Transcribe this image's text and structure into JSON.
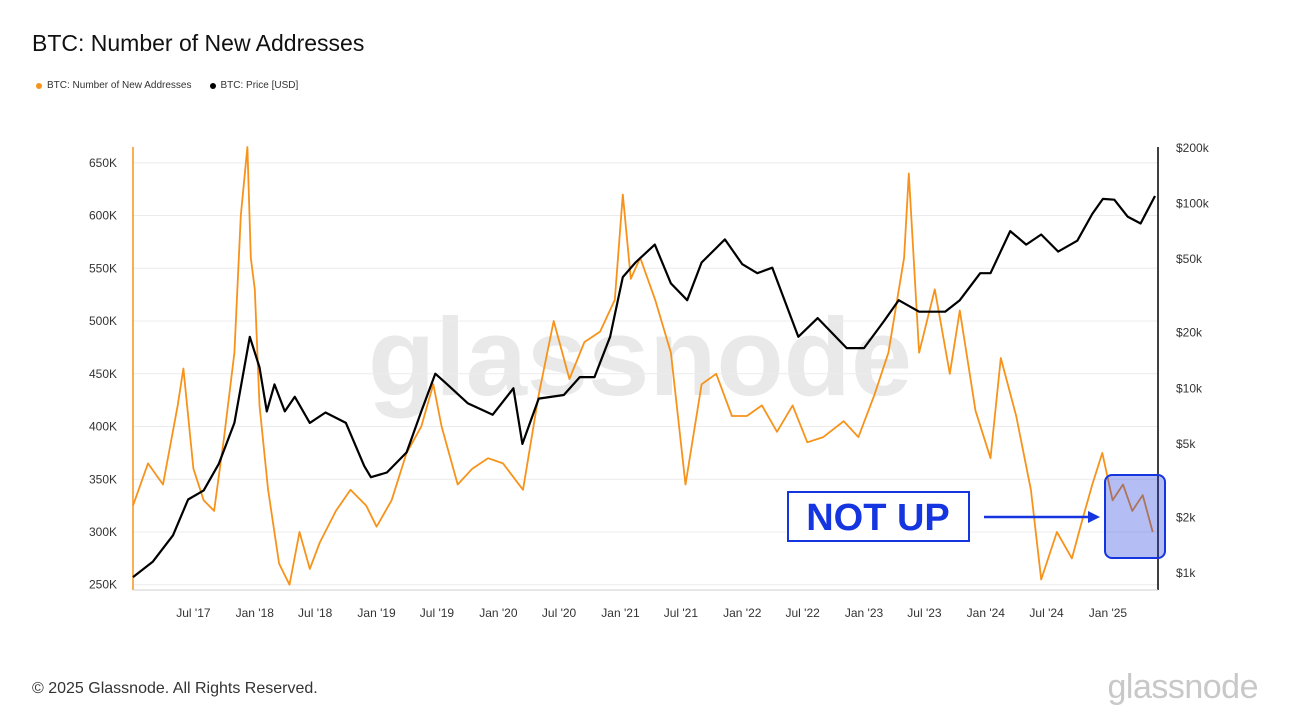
{
  "title": "BTC: Number of New Addresses",
  "legend": [
    {
      "label": "BTC: Number of New Addresses",
      "color": "#f7931a"
    },
    {
      "label": "BTC: Price [USD]",
      "color": "#000000"
    }
  ],
  "copyright": "© 2025 Glassnode. All Rights Reserved.",
  "brand": "glassnode",
  "watermark": "glassnode",
  "annotation": {
    "label": "NOT UP",
    "color": "#1535e0"
  },
  "chart_data": {
    "type": "line",
    "x_ticks": [
      "Jul '17",
      "Jan '18",
      "Jul '18",
      "Jan '19",
      "Jul '19",
      "Jan '20",
      "Jul '20",
      "Jan '21",
      "Jul '21",
      "Jan '22",
      "Jul '22",
      "Jan '23",
      "Jul '23",
      "Jan '24",
      "Jul '24",
      "Jan '25"
    ],
    "y_left_ticks": [
      250000,
      300000,
      350000,
      400000,
      450000,
      500000,
      550000,
      600000,
      650000
    ],
    "y_left_labels": [
      "250K",
      "300K",
      "350K",
      "400K",
      "450K",
      "500K",
      "550K",
      "600K",
      "650K"
    ],
    "y_left_range": [
      245000,
      665000
    ],
    "y_right_ticks": [
      1000,
      2000,
      5000,
      10000,
      20000,
      50000,
      100000,
      200000
    ],
    "y_right_labels": [
      "$1k",
      "$2k",
      "$5k",
      "$10k",
      "$20k",
      "$50k",
      "$100k",
      "$200k"
    ],
    "y_right_scale": "log",
    "x_range": [
      "2017-01-01",
      "2025-05-31"
    ],
    "series": [
      {
        "name": "BTC: Number of New Addresses",
        "axis": "left",
        "color": "#f7931a",
        "x": [
          "2017-01-01",
          "2017-02-15",
          "2017-04-01",
          "2017-05-15",
          "2017-06-01",
          "2017-07-01",
          "2017-08-01",
          "2017-09-01",
          "2017-10-01",
          "2017-11-01",
          "2017-11-20",
          "2017-12-10",
          "2017-12-20",
          "2018-01-01",
          "2018-01-15",
          "2018-02-10",
          "2018-03-15",
          "2018-04-15",
          "2018-05-15",
          "2018-06-15",
          "2018-07-15",
          "2018-09-01",
          "2018-10-15",
          "2018-12-01",
          "2019-01-01",
          "2019-02-15",
          "2019-04-01",
          "2019-05-15",
          "2019-06-20",
          "2019-07-15",
          "2019-09-01",
          "2019-10-15",
          "2019-12-01",
          "2020-01-15",
          "2020-03-15",
          "2020-05-01",
          "2020-06-15",
          "2020-08-01",
          "2020-09-15",
          "2020-11-01",
          "2020-12-15",
          "2021-01-08",
          "2021-02-01",
          "2021-03-01",
          "2021-04-15",
          "2021-06-01",
          "2021-07-15",
          "2021-09-01",
          "2021-10-15",
          "2021-12-01",
          "2022-01-15",
          "2022-03-01",
          "2022-04-15",
          "2022-06-01",
          "2022-07-15",
          "2022-09-01",
          "2022-11-01",
          "2022-12-15",
          "2023-02-01",
          "2023-03-15",
          "2023-05-01",
          "2023-05-15",
          "2023-06-15",
          "2023-08-01",
          "2023-09-15",
          "2023-10-15",
          "2023-12-01",
          "2024-01-15",
          "2024-02-15",
          "2024-04-01",
          "2024-05-15",
          "2024-06-15",
          "2024-08-01",
          "2024-09-15",
          "2024-10-15",
          "2024-11-15",
          "2024-12-15",
          "2025-01-15",
          "2025-02-15",
          "2025-03-15",
          "2025-04-15",
          "2025-05-15"
        ],
        "values": [
          325000,
          365000,
          345000,
          420000,
          455000,
          360000,
          330000,
          320000,
          390000,
          470000,
          600000,
          665000,
          560000,
          530000,
          420000,
          340000,
          270000,
          250000,
          300000,
          265000,
          290000,
          320000,
          340000,
          325000,
          305000,
          330000,
          375000,
          400000,
          440000,
          400000,
          345000,
          360000,
          370000,
          365000,
          340000,
          430000,
          500000,
          445000,
          480000,
          490000,
          520000,
          620000,
          540000,
          560000,
          520000,
          470000,
          345000,
          440000,
          450000,
          410000,
          410000,
          420000,
          395000,
          420000,
          385000,
          390000,
          405000,
          390000,
          430000,
          470000,
          560000,
          640000,
          470000,
          530000,
          450000,
          510000,
          415000,
          370000,
          465000,
          410000,
          340000,
          255000,
          300000,
          275000,
          310000,
          345000,
          375000,
          330000,
          345000,
          320000,
          335000,
          300000
        ]
      },
      {
        "name": "BTC: Price [USD]",
        "axis": "right",
        "color": "#000000",
        "x": [
          "2017-01-01",
          "2017-03-01",
          "2017-05-01",
          "2017-06-15",
          "2017-08-01",
          "2017-09-15",
          "2017-11-01",
          "2017-12-17",
          "2018-01-15",
          "2018-02-06",
          "2018-03-01",
          "2018-04-01",
          "2018-05-01",
          "2018-06-15",
          "2018-08-01",
          "2018-10-01",
          "2018-11-25",
          "2018-12-15",
          "2019-02-01",
          "2019-04-01",
          "2019-05-15",
          "2019-06-26",
          "2019-08-01",
          "2019-10-01",
          "2019-12-15",
          "2020-02-15",
          "2020-03-13",
          "2020-05-01",
          "2020-07-15",
          "2020-09-01",
          "2020-10-15",
          "2020-12-01",
          "2021-01-08",
          "2021-02-15",
          "2021-04-14",
          "2021-06-01",
          "2021-07-20",
          "2021-09-01",
          "2021-11-10",
          "2022-01-01",
          "2022-02-15",
          "2022-04-01",
          "2022-06-18",
          "2022-08-15",
          "2022-11-10",
          "2023-01-01",
          "2023-03-01",
          "2023-04-15",
          "2023-06-15",
          "2023-09-01",
          "2023-10-15",
          "2023-12-15",
          "2024-01-15",
          "2024-03-14",
          "2024-05-01",
          "2024-06-15",
          "2024-08-05",
          "2024-10-01",
          "2024-11-15",
          "2024-12-17",
          "2025-01-20",
          "2025-03-01",
          "2025-04-09",
          "2025-05-22"
        ],
        "values": [
          950,
          1150,
          1600,
          2500,
          2800,
          3900,
          6500,
          19000,
          13000,
          7500,
          10500,
          7500,
          9000,
          6500,
          7400,
          6500,
          3800,
          3300,
          3500,
          4500,
          7500,
          12000,
          10500,
          8300,
          7200,
          10000,
          5000,
          8800,
          9200,
          11500,
          11500,
          19000,
          40000,
          48000,
          60000,
          37000,
          30000,
          48000,
          64000,
          47000,
          42000,
          45000,
          19000,
          24000,
          16500,
          16500,
          23000,
          30000,
          26000,
          26000,
          30000,
          42000,
          42000,
          71000,
          60000,
          68000,
          55000,
          63000,
          88000,
          106000,
          105000,
          85000,
          78000,
          110000
        ]
      }
    ]
  }
}
